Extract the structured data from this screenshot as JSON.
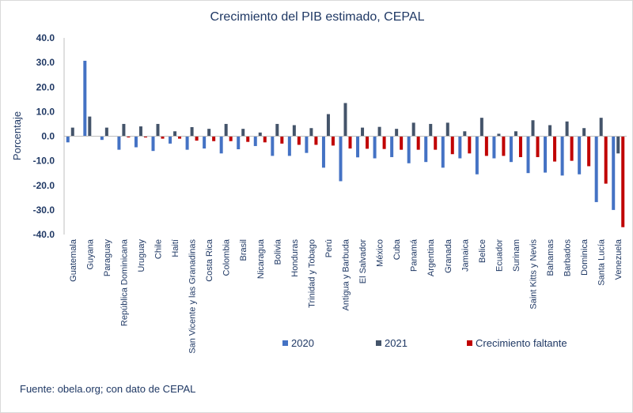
{
  "chart_data": {
    "type": "bar",
    "title": "Crecimiento del PIB estimado, CEPAL",
    "xlabel": "",
    "ylabel": "Porcentaje",
    "ylim": [
      -40,
      40
    ],
    "yticks": [
      "40.0",
      "30.0",
      "20.0",
      "10.0",
      "0.0",
      "-10.0",
      "-20.0",
      "-30.0",
      "-40.0"
    ],
    "ytick_values": [
      40,
      30,
      20,
      10,
      0,
      -10,
      -20,
      -30,
      -40
    ],
    "legend_position": "bottom",
    "grid": false,
    "categories": [
      "Guatemala",
      "Guyana",
      "Paraguay",
      "República Dominicana",
      "Uruguay",
      "Chile",
      "Haití",
      "San Vicente y las Granadinas",
      "Costa Rica",
      "Colombia",
      "Brasil",
      "Nicaragua",
      "Bolivia",
      "Honduras",
      "Trinidad y Tobago",
      "Perú",
      "Antigua y Barbuda",
      "El Salvador",
      "México",
      "Cuba",
      "Panamá",
      "Argentina",
      "Granada",
      "Jamaica",
      "Belice",
      "Ecuador",
      "Surinam",
      "Saint Kitts y Nevis",
      "Bahamas",
      "Barbados",
      "Dominica",
      "Santa Lucía",
      "Venezuela"
    ],
    "series": [
      {
        "name": "2020",
        "color": "#4472c4",
        "values": [
          -2.5,
          30.7,
          -1.5,
          -5.5,
          -4.5,
          -6.0,
          -3.0,
          -5.5,
          -5.0,
          -7.0,
          -5.3,
          -4.0,
          -8.0,
          -8.0,
          -6.8,
          -12.8,
          -18.3,
          -8.6,
          -9.0,
          -8.5,
          -11.0,
          -10.5,
          -12.8,
          -9.0,
          -15.5,
          -9.0,
          -10.5,
          -15.0,
          -14.8,
          -16.0,
          -15.5,
          -26.8,
          -30.0
        ]
      },
      {
        "name": "2021",
        "color": "#44546a",
        "values": [
          3.5,
          8.0,
          3.5,
          5.0,
          4.0,
          5.0,
          2.0,
          3.7,
          3.0,
          5.0,
          3.0,
          1.5,
          5.0,
          4.5,
          3.3,
          9.0,
          13.5,
          3.5,
          3.8,
          3.0,
          5.5,
          5.0,
          5.5,
          2.0,
          7.5,
          1.0,
          2.0,
          6.5,
          4.5,
          6.0,
          3.3,
          7.5,
          -7.0
        ]
      },
      {
        "name": "Crecimiento faltante",
        "color": "#c00000",
        "values": [
          0,
          0,
          0,
          -0.5,
          -0.5,
          -1.0,
          -1.0,
          -1.8,
          -2.0,
          -2.0,
          -2.3,
          -2.5,
          -3.0,
          -3.5,
          -3.5,
          -3.8,
          -5.0,
          -5.1,
          -5.2,
          -5.5,
          -5.5,
          -5.5,
          -7.3,
          -7.0,
          -8.0,
          -8.0,
          -8.5,
          -8.5,
          -10.3,
          -10.0,
          -12.2,
          -19.3,
          -37.0
        ]
      }
    ]
  },
  "source_text": "Fuente: obela.org; con dato de CEPAL"
}
